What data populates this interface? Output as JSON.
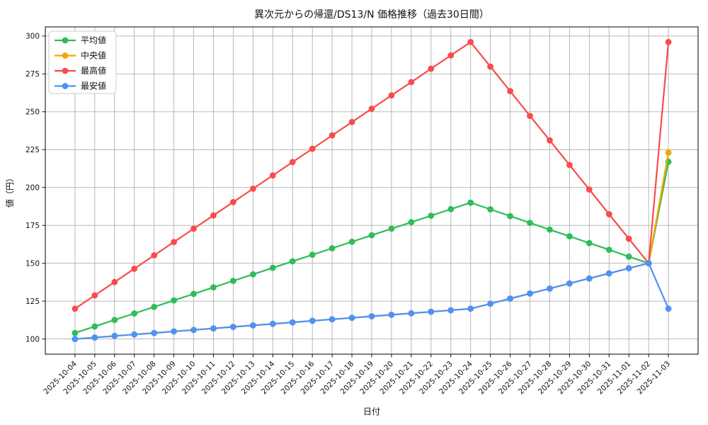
{
  "chart_data": {
    "type": "line",
    "title": "異次元からの帰還/DS13/N 価格推移（過去30日間）",
    "xlabel": "日付",
    "ylabel": "値（円）",
    "x": [
      "2025-10-04",
      "2025-10-05",
      "2025-10-06",
      "2025-10-07",
      "2025-10-08",
      "2025-10-09",
      "2025-10-10",
      "2025-10-11",
      "2025-10-12",
      "2025-10-13",
      "2025-10-14",
      "2025-10-15",
      "2025-10-16",
      "2025-10-17",
      "2025-10-18",
      "2025-10-19",
      "2025-10-20",
      "2025-10-21",
      "2025-10-22",
      "2025-10-23",
      "2025-10-24",
      "2025-10-25",
      "2025-10-26",
      "2025-10-27",
      "2025-10-28",
      "2025-10-29",
      "2025-10-30",
      "2025-10-31",
      "2025-11-01",
      "2025-11-02",
      "2025-11-03"
    ],
    "series": [
      {
        "name": "平均値",
        "key": "average",
        "color": "#2ebd57",
        "values": [
          104,
          108.3,
          112.6,
          116.9,
          121.2,
          125.5,
          129.8,
          134.1,
          138.4,
          142.7,
          147,
          151.3,
          155.6,
          159.9,
          164.2,
          168.5,
          172.8,
          177.1,
          181.4,
          185.7,
          190,
          185.6,
          181.1,
          176.7,
          172.2,
          167.8,
          163.3,
          158.9,
          154.4,
          150,
          217
        ]
      },
      {
        "name": "中央値",
        "key": "median",
        "color": "#f7a504",
        "values": [
          100,
          101,
          102,
          103,
          104,
          105,
          106,
          107,
          108,
          109,
          110,
          111,
          112,
          113,
          114,
          115,
          116,
          117,
          118,
          119,
          120,
          123.3,
          126.7,
          130,
          133.3,
          136.7,
          140,
          143.3,
          146.7,
          150,
          223
        ]
      },
      {
        "name": "最高値",
        "key": "max",
        "color": "#f94b4b",
        "values": [
          120,
          128.8,
          137.6,
          146.4,
          155.2,
          164,
          172.8,
          181.6,
          190.4,
          199.2,
          208,
          216.8,
          225.6,
          234.4,
          243.2,
          252,
          260.8,
          269.6,
          278.4,
          287.2,
          296,
          279.8,
          263.6,
          247.3,
          231.1,
          214.9,
          198.7,
          182.4,
          166.2,
          150,
          296
        ]
      },
      {
        "name": "最安値",
        "key": "min",
        "color": "#4d92f5",
        "values": [
          100,
          101,
          102,
          103,
          104,
          105,
          106,
          107,
          108,
          109,
          110,
          111,
          112,
          113,
          114,
          115,
          116,
          117,
          118,
          119,
          120,
          123.3,
          126.7,
          130,
          133.3,
          136.7,
          140,
          143.3,
          146.7,
          150,
          120
        ]
      }
    ],
    "ylim": [
      90,
      306
    ],
    "yticks": [
      100,
      125,
      150,
      175,
      200,
      225,
      250,
      275,
      300
    ],
    "grid": true,
    "legend_position": "upper left",
    "colors": {
      "grid": "#b0b0b0",
      "spine": "#000000",
      "text": "#111111",
      "legend_border": "#cccccc",
      "background": "#ffffff"
    }
  }
}
